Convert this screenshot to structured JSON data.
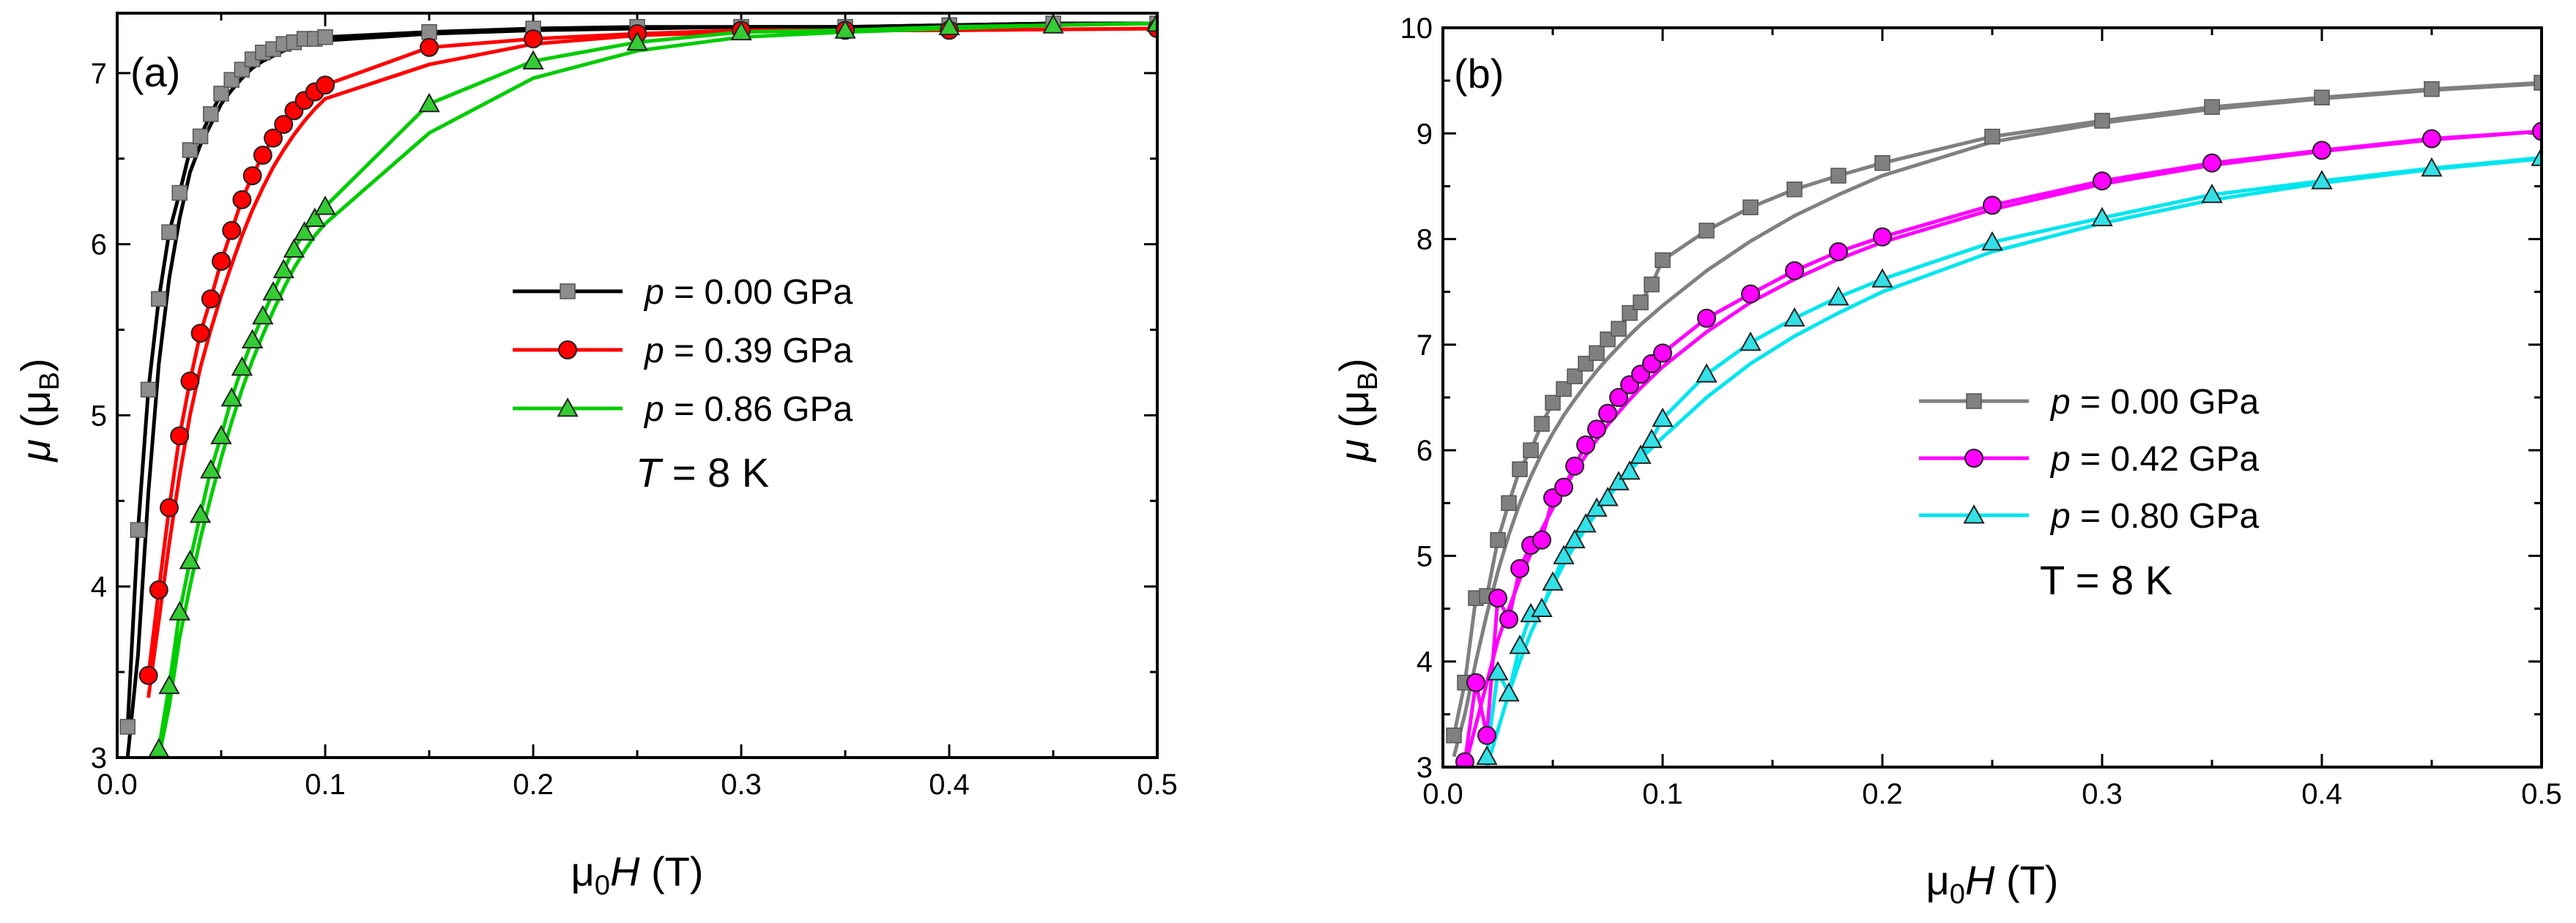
{
  "chart_data": [
    {
      "type": "line",
      "panel_label": "(a)",
      "xlabel": {
        "prefix": "μ",
        "sub": "0",
        "italic": "H",
        "suffix": " (T)"
      },
      "ylabel": {
        "italic": "μ",
        "open": " (μ",
        "sub": "B",
        "close": ")"
      },
      "xlim": [
        0.0,
        0.5
      ],
      "ylim": [
        3,
        7.35
      ],
      "xticks": [
        "0.0",
        "0.1",
        "0.2",
        "0.3",
        "0.4",
        "0.5"
      ],
      "yticks": [
        "3",
        "4",
        "5",
        "6",
        "7"
      ],
      "annotation": {
        "italic": "T",
        "rest": " = 8 K"
      },
      "legend_position": "center-right",
      "series": [
        {
          "name": "p = 0.00 GPa",
          "label_italic": "p",
          "label_rest": " = 0.00 GPa",
          "color": "#000000",
          "marker_fill": "#8c8c8c",
          "marker": "square",
          "x": [
            0.005,
            0.01,
            0.015,
            0.02,
            0.025,
            0.03,
            0.035,
            0.04,
            0.045,
            0.05,
            0.055,
            0.06,
            0.065,
            0.07,
            0.075,
            0.08,
            0.085,
            0.09,
            0.095,
            0.1,
            0.15,
            0.2,
            0.25,
            0.3,
            0.35,
            0.4,
            0.45,
            0.5
          ],
          "y": [
            3.18,
            4.33,
            5.15,
            5.68,
            6.07,
            6.3,
            6.55,
            6.63,
            6.76,
            6.88,
            6.96,
            7.02,
            7.08,
            7.12,
            7.14,
            7.17,
            7.18,
            7.2,
            7.2,
            7.21,
            7.24,
            7.26,
            7.27,
            7.27,
            7.27,
            7.28,
            7.29,
            7.29
          ],
          "y_return": [
            3.0,
            3.6,
            4.55,
            5.3,
            5.8,
            6.15,
            6.42,
            6.58,
            6.7,
            6.82,
            6.9,
            6.97,
            7.03,
            7.07,
            7.1,
            7.13,
            7.15,
            7.17,
            7.18,
            7.19,
            7.23,
            7.25,
            7.26,
            7.27,
            7.27,
            7.28,
            7.29,
            7.29
          ]
        },
        {
          "name": "p = 0.39 GPa",
          "label_italic": "p",
          "label_rest": " = 0.39 GPa",
          "color": "#ff0000",
          "marker_fill": "#ff0000",
          "marker": "circle",
          "x": [
            0.015,
            0.02,
            0.025,
            0.03,
            0.035,
            0.04,
            0.045,
            0.05,
            0.055,
            0.06,
            0.065,
            0.07,
            0.075,
            0.08,
            0.085,
            0.09,
            0.095,
            0.1,
            0.15,
            0.2,
            0.25,
            0.3,
            0.35,
            0.4,
            0.5
          ],
          "y": [
            3.48,
            3.98,
            4.46,
            4.88,
            5.2,
            5.48,
            5.68,
            5.9,
            6.08,
            6.26,
            6.4,
            6.52,
            6.62,
            6.7,
            6.78,
            6.84,
            6.89,
            6.93,
            7.15,
            7.2,
            7.23,
            7.25,
            7.25,
            7.25,
            7.26
          ],
          "y_return": [
            3.35,
            3.8,
            4.25,
            4.65,
            5.0,
            5.28,
            5.5,
            5.7,
            5.88,
            6.05,
            6.2,
            6.33,
            6.45,
            6.55,
            6.64,
            6.72,
            6.79,
            6.85,
            7.05,
            7.17,
            7.22,
            7.24,
            7.25,
            7.25,
            7.26
          ]
        },
        {
          "name": "p = 0.86 GPa",
          "label_italic": "p",
          "label_rest": " = 0.86 GPa",
          "color": "#00cc00",
          "marker_fill": "#33cc33",
          "marker": "triangle",
          "x": [
            0.02,
            0.025,
            0.03,
            0.035,
            0.04,
            0.045,
            0.05,
            0.055,
            0.06,
            0.065,
            0.07,
            0.075,
            0.08,
            0.085,
            0.09,
            0.095,
            0.1,
            0.15,
            0.2,
            0.25,
            0.3,
            0.35,
            0.4,
            0.45,
            0.5
          ],
          "y": [
            3.05,
            3.42,
            3.85,
            4.15,
            4.42,
            4.68,
            4.88,
            5.1,
            5.28,
            5.44,
            5.58,
            5.72,
            5.85,
            5.97,
            6.07,
            6.15,
            6.22,
            6.82,
            7.07,
            7.18,
            7.24,
            7.25,
            7.27,
            7.28,
            7.29
          ],
          "y_return": [
            3.0,
            3.3,
            3.7,
            4.0,
            4.28,
            4.52,
            4.75,
            4.96,
            5.15,
            5.32,
            5.47,
            5.61,
            5.74,
            5.86,
            5.96,
            6.05,
            6.12,
            6.65,
            6.97,
            7.13,
            7.21,
            7.24,
            7.26,
            7.28,
            7.29
          ]
        }
      ]
    },
    {
      "type": "line",
      "panel_label": "(b)",
      "xlabel": {
        "prefix": "μ",
        "sub": "0",
        "italic": "H",
        "suffix": " (T)"
      },
      "ylabel": {
        "italic": "μ",
        "open": " (μ",
        "sub": "B",
        "close": ")"
      },
      "xlim": [
        0.0,
        0.5
      ],
      "ylim": [
        3,
        10
      ],
      "xticks": [
        "0.0",
        "0.1",
        "0.2",
        "0.3",
        "0.4",
        "0.5"
      ],
      "yticks": [
        "3",
        "4",
        "5",
        "6",
        "7",
        "8",
        "9",
        "10"
      ],
      "annotation": {
        "italic": "",
        "rest": "T = 8 K"
      },
      "legend_position": "center-right",
      "series": [
        {
          "name": "p = 0.00 GPa",
          "label_italic": "p",
          "label_rest": " = 0.00 GPa",
          "color": "#808080",
          "marker_fill": "#808080",
          "marker": "square",
          "x": [
            0.005,
            0.01,
            0.015,
            0.02,
            0.025,
            0.03,
            0.035,
            0.04,
            0.045,
            0.05,
            0.055,
            0.06,
            0.065,
            0.07,
            0.075,
            0.08,
            0.085,
            0.09,
            0.095,
            0.1,
            0.12,
            0.14,
            0.16,
            0.18,
            0.2,
            0.25,
            0.3,
            0.35,
            0.4,
            0.45,
            0.5
          ],
          "y": [
            3.3,
            3.8,
            4.6,
            4.62,
            5.15,
            5.5,
            5.82,
            6.0,
            6.25,
            6.45,
            6.58,
            6.7,
            6.82,
            6.92,
            7.05,
            7.15,
            7.3,
            7.4,
            7.57,
            7.8,
            8.08,
            8.3,
            8.47,
            8.6,
            8.72,
            8.97,
            9.12,
            9.25,
            9.34,
            9.42,
            9.48
          ],
          "y_return": [
            3.1,
            3.5,
            4.0,
            4.45,
            4.85,
            5.2,
            5.5,
            5.75,
            5.97,
            6.16,
            6.33,
            6.48,
            6.62,
            6.75,
            6.87,
            6.98,
            7.09,
            7.19,
            7.28,
            7.37,
            7.7,
            7.98,
            8.22,
            8.42,
            8.6,
            8.92,
            9.1,
            9.23,
            9.33,
            9.41,
            9.47
          ]
        },
        {
          "name": "p = 0.42 GPa",
          "label_italic": "p",
          "label_rest": " = 0.42 GPa",
          "color": "#ff00ff",
          "marker_fill": "#ff00ff",
          "marker": "circle",
          "x": [
            0.01,
            0.015,
            0.02,
            0.025,
            0.03,
            0.035,
            0.04,
            0.045,
            0.05,
            0.055,
            0.06,
            0.065,
            0.07,
            0.075,
            0.08,
            0.085,
            0.09,
            0.095,
            0.1,
            0.12,
            0.14,
            0.16,
            0.18,
            0.2,
            0.25,
            0.3,
            0.35,
            0.4,
            0.45,
            0.5
          ],
          "y": [
            3.05,
            3.8,
            3.3,
            4.6,
            4.4,
            4.88,
            5.1,
            5.15,
            5.55,
            5.65,
            5.85,
            6.05,
            6.2,
            6.35,
            6.5,
            6.62,
            6.72,
            6.82,
            6.92,
            7.25,
            7.48,
            7.7,
            7.88,
            8.02,
            8.32,
            8.55,
            8.72,
            8.84,
            8.95,
            9.02
          ],
          "y_return": [
            3.0,
            3.4,
            3.8,
            4.2,
            4.5,
            4.78,
            5.02,
            5.25,
            5.45,
            5.63,
            5.8,
            5.95,
            6.1,
            6.24,
            6.36,
            6.48,
            6.59,
            6.69,
            6.79,
            7.12,
            7.4,
            7.62,
            7.81,
            7.97,
            8.28,
            8.52,
            8.7,
            8.83,
            8.94,
            9.02
          ]
        },
        {
          "name": "p = 0.80 GPa",
          "label_italic": "p",
          "label_rest": " = 0.80 GPa",
          "color": "#00e5ee",
          "marker_fill": "#33e0e6",
          "marker": "triangle",
          "x": [
            0.02,
            0.025,
            0.03,
            0.035,
            0.04,
            0.045,
            0.05,
            0.055,
            0.06,
            0.065,
            0.07,
            0.075,
            0.08,
            0.085,
            0.09,
            0.095,
            0.1,
            0.12,
            0.14,
            0.16,
            0.18,
            0.2,
            0.25,
            0.3,
            0.35,
            0.4,
            0.45,
            0.5
          ],
          "y": [
            3.1,
            3.9,
            3.7,
            4.15,
            4.45,
            4.5,
            4.75,
            5.0,
            5.15,
            5.3,
            5.45,
            5.55,
            5.7,
            5.8,
            5.95,
            6.1,
            6.3,
            6.72,
            7.02,
            7.25,
            7.45,
            7.62,
            7.97,
            8.2,
            8.42,
            8.55,
            8.67,
            8.77
          ],
          "y_return": [
            3.0,
            3.35,
            3.7,
            4.0,
            4.27,
            4.5,
            4.72,
            4.92,
            5.1,
            5.26,
            5.41,
            5.55,
            5.68,
            5.8,
            5.92,
            6.02,
            6.12,
            6.5,
            6.82,
            7.08,
            7.3,
            7.5,
            7.88,
            8.15,
            8.37,
            8.53,
            8.66,
            8.76
          ]
        }
      ]
    }
  ]
}
